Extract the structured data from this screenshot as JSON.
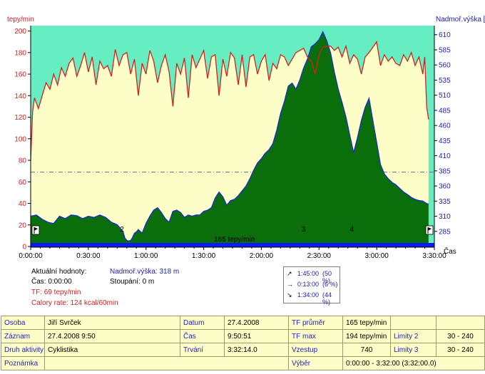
{
  "chart_data": {
    "type": "area",
    "ylabel_left": "tepy/min",
    "ylabel_right": "Nadmoř.výška [m",
    "xlabel": "Čas",
    "y_left_ticks": [
      0,
      20,
      40,
      60,
      80,
      100,
      120,
      140,
      160,
      180,
      200
    ],
    "y_left_range": [
      0,
      205
    ],
    "y_right_ticks": [
      285,
      310,
      335,
      360,
      385,
      410,
      435,
      460,
      485,
      510,
      535,
      560,
      585,
      610
    ],
    "y_right_range": [
      260,
      625
    ],
    "x_ticks": [
      "0:00:00",
      "0:30:00",
      "1:00:00",
      "1:30:00",
      "2:00:00",
      "2:30:00",
      "3:00:00",
      "3:30:00"
    ],
    "x_range_min": [
      0,
      210
    ],
    "threshold_line_value": 69,
    "inner_label": "165 tepy/min",
    "lap_markers": [
      "2",
      "3",
      "4"
    ],
    "heart_rate": {
      "name": "TF",
      "x_min": [
        0,
        1,
        2,
        4,
        6,
        8,
        10,
        12,
        14,
        16,
        18,
        20,
        22,
        24,
        26,
        28,
        30,
        32,
        34,
        36,
        38,
        40,
        42,
        44,
        46,
        48,
        50,
        52,
        54,
        56,
        58,
        60,
        62,
        64,
        66,
        68,
        70,
        72,
        74,
        76,
        78,
        80,
        82,
        84,
        86,
        88,
        90,
        92,
        94,
        96,
        98,
        100,
        102,
        104,
        106,
        108,
        110,
        112,
        114,
        116,
        118,
        120,
        122,
        124,
        126,
        128,
        130,
        132,
        134,
        136,
        138,
        140,
        142,
        144,
        146,
        148,
        150,
        152,
        154,
        156,
        158,
        160,
        162,
        164,
        166,
        168,
        170,
        172,
        174,
        176,
        178,
        180,
        182,
        184,
        186,
        188,
        190,
        192,
        194,
        196,
        198,
        200,
        202,
        204,
        205,
        206,
        207
      ],
      "values": [
        80,
        125,
        138,
        128,
        140,
        152,
        146,
        160,
        150,
        166,
        158,
        170,
        175,
        158,
        168,
        180,
        162,
        176,
        150,
        172,
        165,
        168,
        158,
        183,
        168,
        178,
        180,
        160,
        174,
        140,
        170,
        160,
        182,
        172,
        152,
        168,
        178,
        162,
        130,
        170,
        160,
        175,
        138,
        178,
        166,
        174,
        182,
        156,
        176,
        178,
        140,
        174,
        158,
        180,
        175,
        150,
        178,
        148,
        176,
        178,
        160,
        172,
        178,
        154,
        170,
        165,
        178,
        176,
        168,
        174,
        180,
        182,
        184,
        176,
        172,
        160,
        178,
        185,
        186,
        186,
        182,
        185,
        176,
        186,
        170,
        178,
        174,
        160,
        176,
        180,
        185,
        190,
        168,
        178,
        172,
        176,
        170,
        168,
        178,
        172,
        180,
        168,
        176,
        160,
        176,
        130,
        118
      ],
      "color": "#d42020"
    },
    "altitude": {
      "name": "Nadmoř.výška",
      "x_min": [
        0,
        3,
        6,
        9,
        12,
        15,
        18,
        21,
        24,
        27,
        30,
        33,
        36,
        39,
        42,
        45,
        48,
        49,
        50,
        51,
        52,
        53,
        54,
        55,
        56,
        58,
        60,
        62,
        64,
        66,
        68,
        70,
        72,
        74,
        76,
        78,
        80,
        82,
        84,
        86,
        88,
        90,
        92,
        94,
        96,
        98,
        100,
        102,
        104,
        106,
        108,
        110,
        112,
        114,
        116,
        118,
        120,
        122,
        124,
        126,
        128,
        130,
        132,
        134,
        136,
        138,
        140,
        142,
        144,
        146,
        148,
        150,
        152,
        154,
        156,
        158,
        160,
        162,
        164,
        166,
        168,
        170,
        172,
        174,
        176,
        178,
        180,
        182,
        184,
        186,
        188,
        190,
        192,
        194,
        196,
        198,
        200,
        202,
        204,
        206,
        207
      ],
      "values": [
        310,
        312,
        305,
        300,
        298,
        310,
        306,
        312,
        311,
        306,
        310,
        308,
        312,
        308,
        300,
        296,
        285,
        274,
        270,
        269,
        270,
        275,
        282,
        284,
        288,
        282,
        298,
        310,
        320,
        324,
        316,
        306,
        300,
        318,
        320,
        316,
        308,
        312,
        310,
        312,
        312,
        318,
        320,
        324,
        340,
        350,
        342,
        328,
        336,
        338,
        344,
        352,
        360,
        372,
        386,
        398,
        405,
        414,
        420,
        430,
        452,
        480,
        500,
        525,
        530,
        520,
        535,
        555,
        570,
        590,
        595,
        602,
        615,
        600,
        580,
        548,
        520,
        498,
        474,
        444,
        415,
        440,
        468,
        490,
        505,
        468,
        432,
        395,
        380,
        372,
        366,
        362,
        356,
        350,
        346,
        341,
        338,
        336,
        335,
        331,
        330
      ],
      "color": "#0a6e0a"
    }
  },
  "tick_marker_icon": "flag-icon",
  "info": {
    "current_label": "Aktuální hodnoty:",
    "alt_label": "Nadmoř.výška: 318 m",
    "time_label": "Čas: 0:00:00",
    "climb_label": "Stoupání: 0 m",
    "hr_label": "TF: 69 tepy/min",
    "calorie_label": "Calory rate: 124 kcal/60min"
  },
  "trend": [
    {
      "icon": "arrow-up-right-icon",
      "glyph": "↗",
      "time": "1:45:00",
      "pct": "(50 %)"
    },
    {
      "icon": "arrow-right-icon",
      "glyph": "→",
      "time": "0:13:00",
      "pct": "(6 %)"
    },
    {
      "icon": "arrow-down-right-icon",
      "glyph": "↘",
      "time": "1:34:00",
      "pct": "(44 %)"
    }
  ],
  "summary": {
    "r1": {
      "l1": "Osoba",
      "v1": "Jiří Svrček",
      "l2": "Datum",
      "v2": "27.4.2008",
      "l3": "TF průměr",
      "v3": "165 tepy/min",
      "l4": "",
      "v4": ""
    },
    "r2": {
      "l1": "Záznam",
      "v1": "27.4.2008 9:50",
      "l2": "Čas",
      "v2": "9:50:51",
      "l3": "TF max",
      "v3": "194 tepy/min",
      "l4": "Limity 2",
      "v4": "30 - 240"
    },
    "r3": {
      "l1": "Druh aktivity",
      "v1": "Cyklistika",
      "l2": "Trvání",
      "v2": "3:32:14.0",
      "l3": "Vzestup",
      "v3": "740",
      "l4": "Limity 3",
      "v4": "30 - 240"
    },
    "r4": {
      "l1": "Poznámka",
      "v1": "",
      "l3": "Výběr",
      "v3": "0:00:00 - 3:32:00 (3:32:00.0)"
    }
  },
  "colors": {
    "plot_upper": "#66eec2",
    "plot_lower": "#fdfdc8",
    "threshold": "#6b6b8a",
    "bottom_bar": "#0a1cf0",
    "axis_left_text": "#d42020",
    "axis_right_text": "#2020c0"
  }
}
